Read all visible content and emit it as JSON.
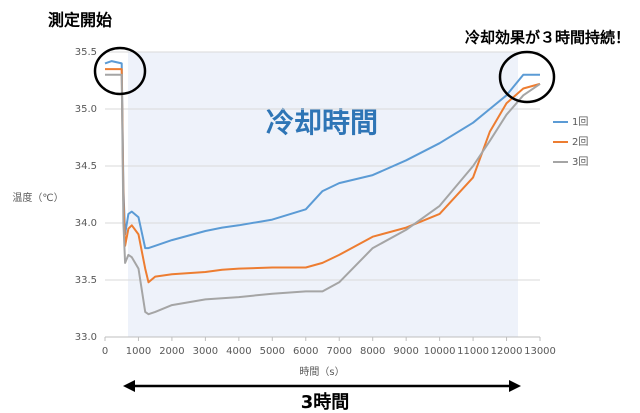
{
  "chart_data": {
    "type": "line",
    "annotations": {
      "start": "測定開始",
      "effect": "冷却効果が３時間持続！",
      "cooling": "冷却時間",
      "duration": "3時間"
    },
    "ylabel": "温度（℃）",
    "xlabel": "時間（s）",
    "x": [
      0,
      200,
      500,
      550,
      600,
      700,
      800,
      1000,
      1200,
      1300,
      1500,
      2000,
      3000,
      3500,
      4000,
      5000,
      6000,
      6500,
      7000,
      8000,
      9000,
      10000,
      11000,
      11500,
      12000,
      12500,
      13000
    ],
    "series": [
      {
        "name": "1回",
        "color": "#5b9bd5",
        "values": [
          35.4,
          35.42,
          35.4,
          34.3,
          33.9,
          34.08,
          34.1,
          34.05,
          33.78,
          33.78,
          33.8,
          33.85,
          33.93,
          33.96,
          33.98,
          34.03,
          34.12,
          34.28,
          34.35,
          34.42,
          34.55,
          34.7,
          34.88,
          35.0,
          35.12,
          35.3,
          35.3
        ]
      },
      {
        "name": "2回",
        "color": "#ed7d31",
        "values": [
          35.35,
          35.35,
          35.35,
          34.2,
          33.8,
          33.95,
          33.98,
          33.9,
          33.6,
          33.48,
          33.53,
          33.55,
          33.57,
          33.59,
          33.6,
          33.61,
          33.61,
          33.65,
          33.72,
          33.88,
          33.96,
          34.08,
          34.4,
          34.8,
          35.05,
          35.18,
          35.22
        ]
      },
      {
        "name": "3回",
        "color": "#a5a5a5",
        "values": [
          35.3,
          35.3,
          35.3,
          34.0,
          33.65,
          33.72,
          33.7,
          33.6,
          33.22,
          33.2,
          33.22,
          33.28,
          33.33,
          33.34,
          33.35,
          33.38,
          33.4,
          33.4,
          33.48,
          33.78,
          33.94,
          34.15,
          34.5,
          34.72,
          34.95,
          35.12,
          35.22
        ]
      }
    ],
    "xlim": [
      0,
      13000
    ],
    "xticks": [
      0,
      1000,
      2000,
      3000,
      4000,
      5000,
      6000,
      7000,
      8000,
      9000,
      10000,
      11000,
      12000,
      13000
    ],
    "ylim": [
      33.0,
      35.5
    ],
    "yticks": [
      {
        "value": 33.0,
        "label": "33.0"
      },
      33.5,
      {
        "value": 34.0,
        "label": "34.0"
      },
      34.5,
      {
        "value": 35.0,
        "label": "35.0"
      },
      35.5
    ],
    "grid": true,
    "legend": "right"
  }
}
